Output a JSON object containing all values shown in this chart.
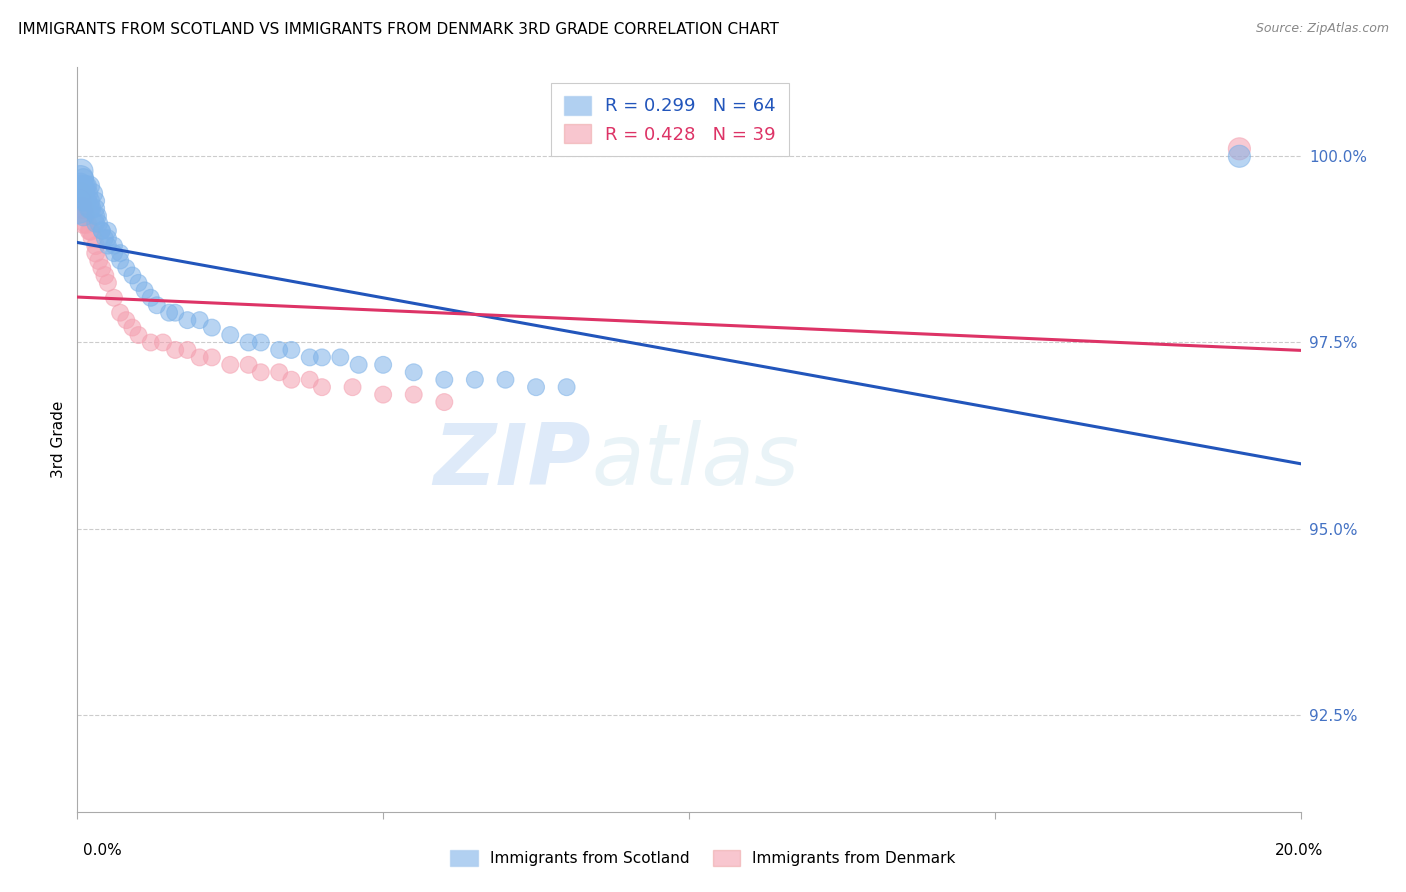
{
  "title": "IMMIGRANTS FROM SCOTLAND VS IMMIGRANTS FROM DENMARK 3RD GRADE CORRELATION CHART",
  "source": "Source: ZipAtlas.com",
  "ylabel": "3rd Grade",
  "yticks": [
    92.5,
    95.0,
    97.5,
    100.0
  ],
  "ytick_labels": [
    "92.5%",
    "95.0%",
    "97.5%",
    "100.0%"
  ],
  "xmin": 0.0,
  "xmax": 0.2,
  "ymin": 91.2,
  "ymax": 101.2,
  "scotland_color": "#7EB2E8",
  "scotland_line_color": "#2255BB",
  "denmark_color": "#F4A0B0",
  "denmark_line_color": "#DD3366",
  "scotland_R": 0.299,
  "scotland_N": 64,
  "denmark_R": 0.428,
  "denmark_N": 39,
  "legend_label_scotland": "Immigrants from Scotland",
  "legend_label_denmark": "Immigrants from Denmark",
  "watermark_zip": "ZIP",
  "watermark_atlas": "atlas",
  "scotland_x": [
    0.0002,
    0.0003,
    0.0004,
    0.0005,
    0.0006,
    0.0008,
    0.001,
    0.001,
    0.001,
    0.001,
    0.0012,
    0.0013,
    0.0015,
    0.0015,
    0.0017,
    0.002,
    0.002,
    0.002,
    0.0022,
    0.0025,
    0.003,
    0.003,
    0.003,
    0.003,
    0.0033,
    0.0035,
    0.004,
    0.004,
    0.0045,
    0.005,
    0.005,
    0.005,
    0.006,
    0.006,
    0.007,
    0.007,
    0.008,
    0.009,
    0.01,
    0.011,
    0.012,
    0.013,
    0.015,
    0.016,
    0.018,
    0.02,
    0.022,
    0.025,
    0.028,
    0.03,
    0.033,
    0.035,
    0.038,
    0.04,
    0.043,
    0.046,
    0.05,
    0.055,
    0.06,
    0.065,
    0.07,
    0.075,
    0.08,
    0.19
  ],
  "scotland_y": [
    99.3,
    99.5,
    99.6,
    99.7,
    99.8,
    99.6,
    99.2,
    99.4,
    99.5,
    99.7,
    99.5,
    99.6,
    99.4,
    99.6,
    99.5,
    99.3,
    99.4,
    99.6,
    99.3,
    99.5,
    99.1,
    99.2,
    99.3,
    99.4,
    99.2,
    99.1,
    99.0,
    99.0,
    98.9,
    98.8,
    98.9,
    99.0,
    98.7,
    98.8,
    98.6,
    98.7,
    98.5,
    98.4,
    98.3,
    98.2,
    98.1,
    98.0,
    97.9,
    97.9,
    97.8,
    97.8,
    97.7,
    97.6,
    97.5,
    97.5,
    97.4,
    97.4,
    97.3,
    97.3,
    97.3,
    97.2,
    97.2,
    97.1,
    97.0,
    97.0,
    97.0,
    96.9,
    96.9,
    100.0
  ],
  "scotland_sizes": [
    60,
    55,
    50,
    50,
    45,
    40,
    35,
    35,
    35,
    35,
    35,
    35,
    35,
    35,
    35,
    35,
    35,
    35,
    35,
    35,
    30,
    30,
    30,
    30,
    30,
    30,
    28,
    28,
    28,
    28,
    28,
    28,
    28,
    28,
    28,
    28,
    28,
    28,
    28,
    28,
    28,
    28,
    28,
    28,
    28,
    28,
    28,
    28,
    28,
    28,
    28,
    28,
    28,
    28,
    28,
    28,
    28,
    28,
    28,
    28,
    28,
    28,
    28,
    40
  ],
  "denmark_x": [
    0.0003,
    0.0005,
    0.0007,
    0.001,
    0.001,
    0.0012,
    0.0015,
    0.002,
    0.0022,
    0.0025,
    0.003,
    0.003,
    0.0035,
    0.004,
    0.0045,
    0.005,
    0.006,
    0.007,
    0.008,
    0.009,
    0.01,
    0.012,
    0.014,
    0.016,
    0.018,
    0.02,
    0.022,
    0.025,
    0.028,
    0.03,
    0.033,
    0.035,
    0.038,
    0.04,
    0.045,
    0.05,
    0.055,
    0.06,
    0.19
  ],
  "denmark_y": [
    99.4,
    99.5,
    99.3,
    99.1,
    99.3,
    99.2,
    99.1,
    99.0,
    99.0,
    98.9,
    98.7,
    98.8,
    98.6,
    98.5,
    98.4,
    98.3,
    98.1,
    97.9,
    97.8,
    97.7,
    97.6,
    97.5,
    97.5,
    97.4,
    97.4,
    97.3,
    97.3,
    97.2,
    97.2,
    97.1,
    97.1,
    97.0,
    97.0,
    96.9,
    96.9,
    96.8,
    96.8,
    96.7,
    100.1
  ],
  "denmark_sizes": [
    45,
    40,
    38,
    35,
    35,
    35,
    35,
    32,
    32,
    32,
    30,
    30,
    30,
    30,
    30,
    28,
    28,
    28,
    28,
    28,
    28,
    28,
    28,
    28,
    28,
    28,
    28,
    28,
    28,
    28,
    28,
    28,
    28,
    28,
    28,
    28,
    28,
    28,
    40
  ]
}
